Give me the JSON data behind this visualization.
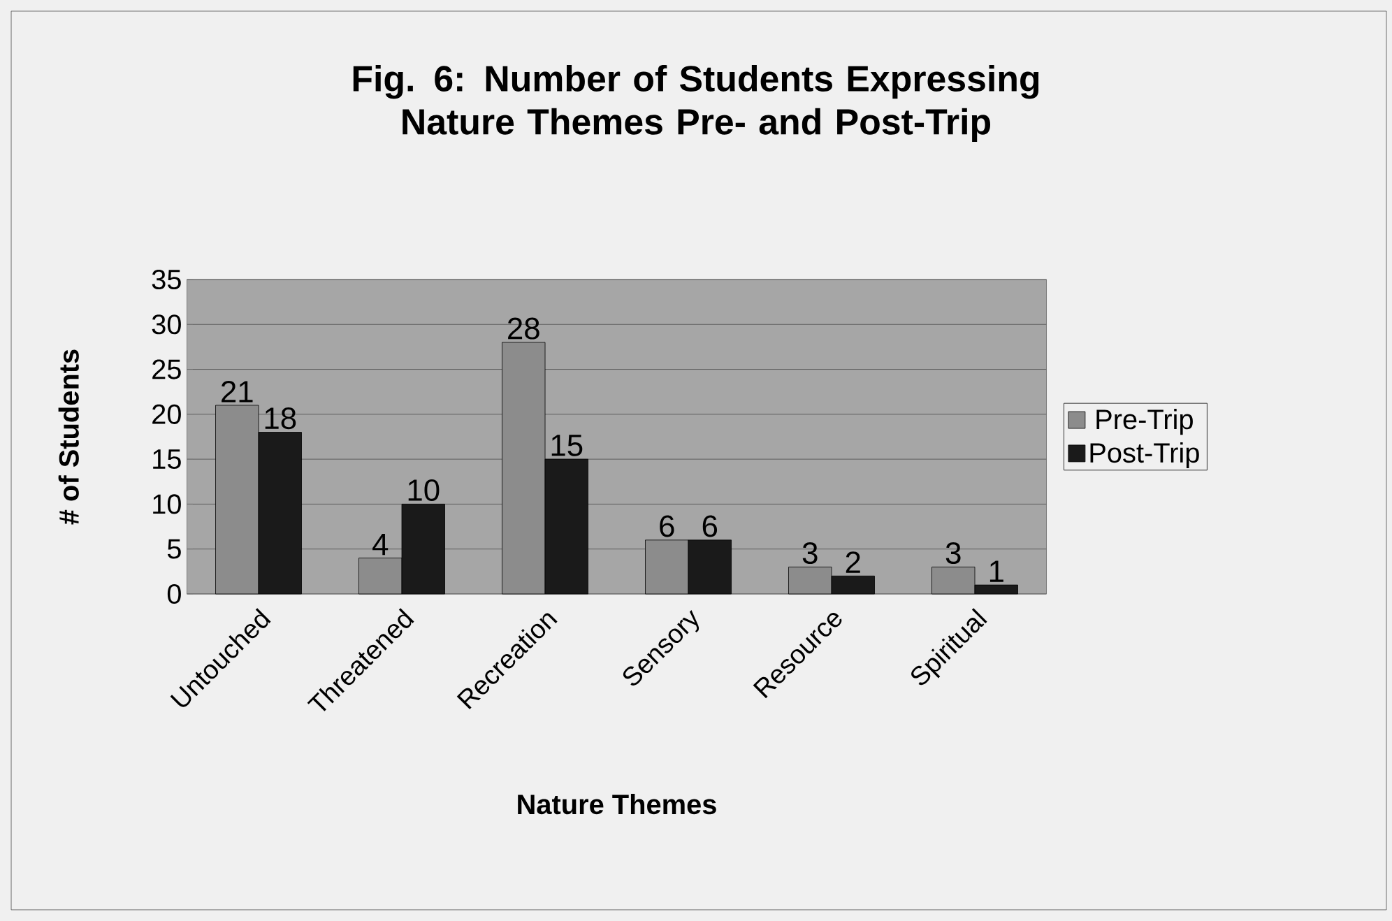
{
  "chart_data": {
    "type": "bar",
    "title": "Fig. 6:  Number of Students Expressing Nature Themes Pre- and Post-Trip",
    "xlabel": "Nature Themes",
    "ylabel": "# of Students",
    "categories": [
      "Untouched",
      "Threatened",
      "Recreation",
      "Sensory",
      "Resource",
      "Spiritual"
    ],
    "series": [
      {
        "name": "Pre-Trip",
        "color": "#8c8c8c",
        "values": [
          21,
          4,
          28,
          6,
          3,
          3
        ]
      },
      {
        "name": "Post-Trip",
        "color": "#1a1a1a",
        "values": [
          18,
          10,
          15,
          6,
          2,
          1
        ]
      }
    ],
    "ylim": [
      0,
      35
    ],
    "yticks": [
      0,
      5,
      10,
      15,
      20,
      25,
      30,
      35
    ],
    "grid": "y",
    "legend": "right",
    "data_labels": true
  }
}
